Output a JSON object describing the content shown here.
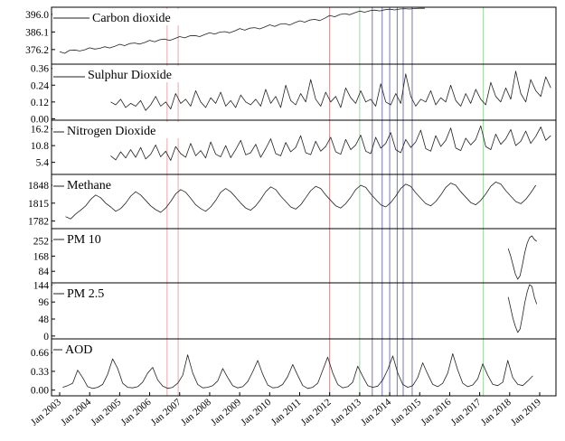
{
  "chart_data": {
    "type": "line",
    "x_start": "Jan 2003",
    "x_end": "Jan 2019",
    "x_tick_labels": [
      "Jan 2003",
      "Jan 2004",
      "Jan 2005",
      "Jan 2006",
      "Jan 2007",
      "Jan 2008",
      "Jan 2009",
      "Jan 2010",
      "Jan 2011",
      "Jan 2012",
      "Jan 2013",
      "Jan 2014",
      "Jan 2015",
      "Jan 2016",
      "Jan 2017",
      "Jan 2018",
      "Jan 2019"
    ],
    "grid": false,
    "vertical_markers": [
      {
        "x": 2006.58,
        "color": "#e8a9a9"
      },
      {
        "x": 2006.95,
        "color": "#e8a9a9"
      },
      {
        "x": 2012.0,
        "color": "#c98a8a"
      },
      {
        "x": 2013.0,
        "color": "#9ed89e"
      },
      {
        "x": 2013.42,
        "color": "#7777b8"
      },
      {
        "x": 2013.75,
        "color": "#7777b8"
      },
      {
        "x": 2014.0,
        "color": "#7777b8"
      },
      {
        "x": 2014.25,
        "color": "#7777b8"
      },
      {
        "x": 2014.45,
        "color": "#7777b8"
      },
      {
        "x": 2014.75,
        "color": "#7777b8"
      },
      {
        "x": 2017.12,
        "color": "#9ed89e"
      }
    ],
    "panels": [
      {
        "name": "Carbon dioxide",
        "y_ticks": [
          "396.0",
          "386.1",
          "376.2"
        ],
        "tick_values": [
          396.0,
          386.1,
          376.2
        ],
        "ylim": [
          368,
          400
        ],
        "start": 2003.0,
        "end": 2016.7,
        "step": 0.1667,
        "values": [
          375.0,
          374.1,
          375.8,
          376.0,
          375.4,
          376.1,
          377.2,
          376.5,
          376.9,
          377.8,
          377.1,
          378.0,
          379.2,
          378.4,
          379.6,
          379.9,
          379.3,
          380.2,
          381.4,
          380.6,
          381.7,
          382.1,
          381.3,
          382.4,
          383.5,
          382.8,
          383.9,
          384.1,
          383.5,
          384.6,
          385.7,
          384.9,
          386.0,
          386.3,
          385.6,
          386.7,
          388.0,
          387.1,
          388.2,
          388.5,
          387.8,
          388.9,
          390.1,
          389.2,
          390.4,
          390.8,
          390.0,
          391.3,
          392.4,
          391.6,
          392.8,
          393.2,
          392.5,
          393.8,
          395.4,
          394.6,
          395.9,
          396.4,
          395.8,
          396.9,
          397.8,
          397.2,
          398.0,
          398.4,
          397.9,
          398.6,
          398.9,
          398.5,
          399.0,
          399.2,
          399.0,
          399.3,
          399.4,
          399.4
        ]
      },
      {
        "name": "Sulphur Dioxide",
        "y_ticks": [
          "0.36",
          "0.24",
          "0.12",
          "0.00"
        ],
        "tick_values": [
          0.36,
          0.24,
          0.12,
          0.0
        ],
        "ylim": [
          -0.01,
          0.39
        ],
        "start": 2004.7,
        "end": 2018.9,
        "step": 0.1667,
        "values": [
          0.12,
          0.1,
          0.14,
          0.08,
          0.11,
          0.09,
          0.13,
          0.06,
          0.1,
          0.16,
          0.09,
          0.12,
          0.07,
          0.18,
          0.11,
          0.14,
          0.09,
          0.2,
          0.12,
          0.08,
          0.15,
          0.11,
          0.19,
          0.09,
          0.13,
          0.08,
          0.17,
          0.12,
          0.1,
          0.14,
          0.09,
          0.21,
          0.11,
          0.16,
          0.08,
          0.24,
          0.13,
          0.1,
          0.18,
          0.12,
          0.28,
          0.14,
          0.09,
          0.19,
          0.12,
          0.16,
          0.08,
          0.22,
          0.15,
          0.11,
          0.2,
          0.12,
          0.14,
          0.09,
          0.25,
          0.12,
          0.1,
          0.18,
          0.11,
          0.32,
          0.16,
          0.09,
          0.14,
          0.12,
          0.2,
          0.1,
          0.15,
          0.12,
          0.24,
          0.13,
          0.09,
          0.18,
          0.11,
          0.21,
          0.14,
          0.1,
          0.26,
          0.16,
          0.12,
          0.22,
          0.14,
          0.34,
          0.18,
          0.12,
          0.28,
          0.2,
          0.16,
          0.3,
          0.22
        ]
      },
      {
        "name": "Nitrogen Dioxide",
        "y_ticks": [
          "16.2",
          "10.8",
          "5.4"
        ],
        "tick_values": [
          16.2,
          10.8,
          5.4
        ],
        "ylim": [
          1.5,
          19
        ],
        "start": 2004.7,
        "end": 2018.9,
        "step": 0.1667,
        "values": [
          7.5,
          6.2,
          8.8,
          6.8,
          9.5,
          7.0,
          10.2,
          6.5,
          8.0,
          11.0,
          7.2,
          9.0,
          6.0,
          10.5,
          8.2,
          7.0,
          11.5,
          7.5,
          9.2,
          6.8,
          12.0,
          8.0,
          7.2,
          10.8,
          6.9,
          9.5,
          12.5,
          7.8,
          8.5,
          11.2,
          7.0,
          9.8,
          13.0,
          8.2,
          7.5,
          11.8,
          8.8,
          10.2,
          14.0,
          8.5,
          7.9,
          12.2,
          9.0,
          10.5,
          13.5,
          8.8,
          8.0,
          12.8,
          9.5,
          11.0,
          14.2,
          9.0,
          8.2,
          13.5,
          10.0,
          11.5,
          15.0,
          9.5,
          8.5,
          12.8,
          10.2,
          12.0,
          15.8,
          9.8,
          9.0,
          14.0,
          10.5,
          12.5,
          16.5,
          10.0,
          9.2,
          13.2,
          11.0,
          12.8,
          17.2,
          10.5,
          9.5,
          14.5,
          11.2,
          13.0,
          16.0,
          10.8,
          12.2,
          15.5,
          11.5,
          13.8,
          16.8,
          12.5,
          14.0
        ]
      },
      {
        "name": "Methane",
        "y_ticks": [
          "1848",
          "1815",
          "1782"
        ],
        "tick_values": [
          1848,
          1815,
          1782
        ],
        "ylim": [
          1768,
          1868
        ],
        "start": 2003.2,
        "end": 2018.9,
        "step": 0.1667,
        "values": [
          1790,
          1786,
          1795,
          1802,
          1810,
          1822,
          1830,
          1825,
          1815,
          1808,
          1800,
          1805,
          1815,
          1828,
          1836,
          1830,
          1820,
          1810,
          1803,
          1798,
          1806,
          1818,
          1832,
          1840,
          1835,
          1824,
          1812,
          1805,
          1800,
          1808,
          1820,
          1835,
          1842,
          1836,
          1826,
          1815,
          1806,
          1802,
          1810,
          1822,
          1836,
          1845,
          1840,
          1828,
          1818,
          1808,
          1804,
          1812,
          1825,
          1838,
          1846,
          1842,
          1830,
          1820,
          1810,
          1806,
          1814,
          1826,
          1840,
          1848,
          1844,
          1832,
          1822,
          1812,
          1808,
          1816,
          1828,
          1842,
          1850,
          1846,
          1834,
          1824,
          1814,
          1810,
          1818,
          1830,
          1844,
          1852,
          1848,
          1836,
          1826,
          1816,
          1812,
          1820,
          1832,
          1846,
          1854,
          1850,
          1838,
          1828,
          1818,
          1814,
          1822,
          1834,
          1848
        ]
      },
      {
        "name": "PM 10",
        "y_ticks": [
          "252",
          "168",
          "84"
        ],
        "tick_values": [
          252,
          168,
          84
        ],
        "ylim": [
          20,
          320
        ],
        "start": 2017.95,
        "end": 2018.9,
        "step": 0.0792,
        "values": [
          210,
          170,
          120,
          70,
          40,
          60,
          120,
          190,
          240,
          270,
          280,
          260,
          250
        ]
      },
      {
        "name": "PM 2.5",
        "y_ticks": [
          "144",
          "96",
          "48",
          "0"
        ],
        "tick_values": [
          144,
          96,
          48,
          0
        ],
        "ylim": [
          -8,
          150
        ],
        "start": 2017.95,
        "end": 2018.9,
        "step": 0.0792,
        "values": [
          110,
          80,
          50,
          28,
          10,
          20,
          55,
          95,
          125,
          145,
          140,
          110,
          90
        ]
      },
      {
        "name": "AOD",
        "y_ticks": [
          "0.66",
          "0.33",
          "0.00"
        ],
        "tick_values": [
          0.66,
          0.33,
          0.0
        ],
        "ylim": [
          -0.1,
          0.9
        ],
        "start": 2003.1,
        "end": 2018.9,
        "step": 0.1667,
        "values": [
          0.05,
          0.08,
          0.12,
          0.35,
          0.22,
          0.06,
          0.03,
          0.05,
          0.1,
          0.28,
          0.55,
          0.38,
          0.12,
          0.05,
          0.04,
          0.06,
          0.14,
          0.3,
          0.4,
          0.18,
          0.07,
          0.03,
          0.05,
          0.12,
          0.26,
          0.62,
          0.3,
          0.1,
          0.04,
          0.05,
          0.08,
          0.16,
          0.38,
          0.22,
          0.08,
          0.04,
          0.06,
          0.15,
          0.32,
          0.52,
          0.28,
          0.09,
          0.04,
          0.05,
          0.1,
          0.24,
          0.45,
          0.26,
          0.08,
          0.03,
          0.05,
          0.12,
          0.35,
          0.58,
          0.3,
          0.1,
          0.04,
          0.06,
          0.14,
          0.42,
          0.24,
          0.08,
          0.05,
          0.07,
          0.18,
          0.36,
          0.6,
          0.3,
          0.1,
          0.05,
          0.08,
          0.22,
          0.48,
          0.28,
          0.1,
          0.06,
          0.12,
          0.3,
          0.64,
          0.35,
          0.12,
          0.06,
          0.09,
          0.2,
          0.46,
          0.26,
          0.1,
          0.08,
          0.14,
          0.52,
          0.22,
          0.1,
          0.08,
          0.16,
          0.25
        ]
      }
    ]
  }
}
